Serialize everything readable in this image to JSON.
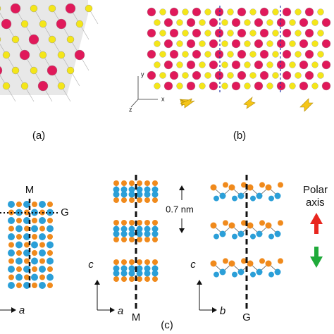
{
  "panel_a": {
    "label": "(a)"
  },
  "panel_b": {
    "label": "(b)",
    "axes": {
      "y": "y",
      "x": "x",
      "z": "z"
    }
  },
  "panel_c": {
    "label": "(c)",
    "view1": {
      "line_labels": [
        "M",
        "G"
      ],
      "axis": "a"
    },
    "view2": {
      "axes": [
        "c",
        "a"
      ],
      "line_label": "M",
      "spacing": "0.7 nm"
    },
    "view3": {
      "axes": [
        "c",
        "b"
      ],
      "line_label": "G"
    },
    "polar": {
      "title_lines": [
        "Polar",
        "axis"
      ]
    }
  }
}
